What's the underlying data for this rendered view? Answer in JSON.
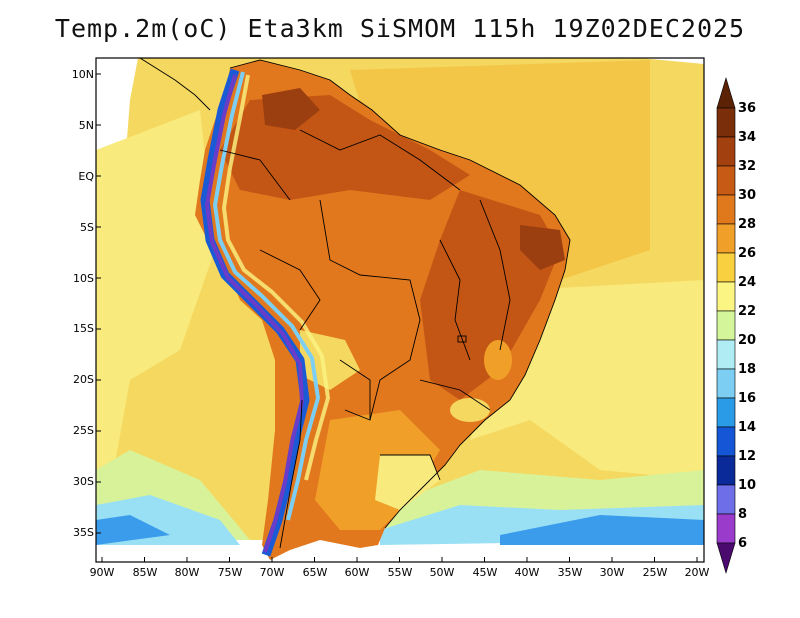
{
  "map": {
    "title": "Temp.2m(oC) Eta3km SiSMOM 115h 19Z02DEC2025",
    "lat_labels": [
      "10N",
      "5N",
      "EQ",
      "5S",
      "10S",
      "15S",
      "20S",
      "25S",
      "30S",
      "35S"
    ],
    "lon_labels": [
      "90W",
      "85W",
      "80W",
      "75W",
      "70W",
      "65W",
      "60W",
      "55W",
      "50W",
      "45W",
      "40W",
      "35W",
      "30W",
      "25W",
      "20W"
    ],
    "colorbar": {
      "labels": [
        "36",
        "34",
        "32",
        "30",
        "28",
        "26",
        "24",
        "22",
        "20",
        "18",
        "16",
        "14",
        "12",
        "10",
        "8",
        "6"
      ],
      "colors_top_to_bottom": [
        "#7a2f0a",
        "#a3400f",
        "#c75a14",
        "#e0781c",
        "#f0a028",
        "#f9d040",
        "#fbf583",
        "#d4f59a",
        "#b0ecf4",
        "#7ccff2",
        "#2a9be6",
        "#1556d6",
        "#0b2a9a",
        "#6d6ee8",
        "#9a3bcc",
        "#5a0f8a"
      ],
      "top_arrow_color": "#5c2206",
      "bottom_arrow_color": "#4a0a6e"
    },
    "field_colors": {
      "ocean_warm": "#f5d860",
      "ocean_mild": "#f8ea7c",
      "ocean_cool": "#d8f29a",
      "ocean_cold": "#9ae0f4",
      "ocean_coldest": "#3a9cea",
      "land_hot": "#c35614",
      "land_hotter": "#9c3f10",
      "land_warm": "#e2781e",
      "andes_cool": "#1a5ad4",
      "andes_cold": "#6a3cc8"
    }
  }
}
